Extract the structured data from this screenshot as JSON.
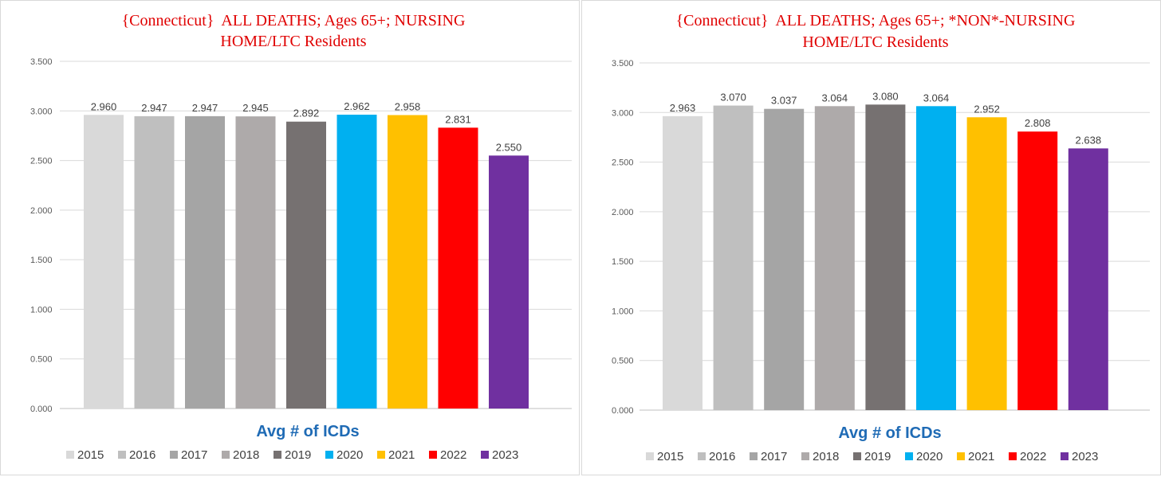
{
  "chart_data": [
    {
      "type": "bar",
      "title_lines": [
        "{Connecticut}  ALL DEATHS; Ages 65+; NURSING",
        "HOME/LTC Residents"
      ],
      "xlabel": "Avg # of ICDs",
      "ylabel": "",
      "ylim": [
        0,
        3.5
      ],
      "yticks": [
        "0.000",
        "0.500",
        "1.000",
        "1.500",
        "2.000",
        "2.500",
        "3.000",
        "3.500"
      ],
      "grid": true,
      "legend_position": "bottom",
      "categories": [
        "2015",
        "2016",
        "2017",
        "2018",
        "2019",
        "2020",
        "2021",
        "2022",
        "2023"
      ],
      "values": [
        2.96,
        2.947,
        2.947,
        2.945,
        2.892,
        2.962,
        2.958,
        2.831,
        2.55
      ],
      "value_labels": [
        "2.960",
        "2.947",
        "2.947",
        "2.945",
        "2.892",
        "2.962",
        "2.958",
        "2.831",
        "2.550"
      ],
      "colors": [
        "#d9d9d9",
        "#bfbfbf",
        "#a5a5a5",
        "#aeaaaa",
        "#767171",
        "#00b0f0",
        "#ffc000",
        "#ff0000",
        "#7030a0"
      ]
    },
    {
      "type": "bar",
      "title_lines": [
        "{Connecticut}  ALL DEATHS; Ages 65+; *NON*-NURSING",
        "HOME/LTC Residents"
      ],
      "xlabel": "Avg # of ICDs",
      "ylabel": "",
      "ylim": [
        0,
        3.5
      ],
      "yticks": [
        "0.000",
        "0.500",
        "1.000",
        "1.500",
        "2.000",
        "2.500",
        "3.000",
        "3.500"
      ],
      "grid": true,
      "legend_position": "bottom",
      "categories": [
        "2015",
        "2016",
        "2017",
        "2018",
        "2019",
        "2020",
        "2021",
        "2022",
        "2023"
      ],
      "values": [
        2.963,
        3.07,
        3.037,
        3.064,
        3.08,
        3.064,
        2.952,
        2.808,
        2.638
      ],
      "value_labels": [
        "2.963",
        "3.070",
        "3.037",
        "3.064",
        "3.080",
        "3.064",
        "2.952",
        "2.808",
        "2.638"
      ],
      "colors": [
        "#d9d9d9",
        "#bfbfbf",
        "#a5a5a5",
        "#aeaaaa",
        "#767171",
        "#00b0f0",
        "#ffc000",
        "#ff0000",
        "#7030a0"
      ]
    }
  ]
}
